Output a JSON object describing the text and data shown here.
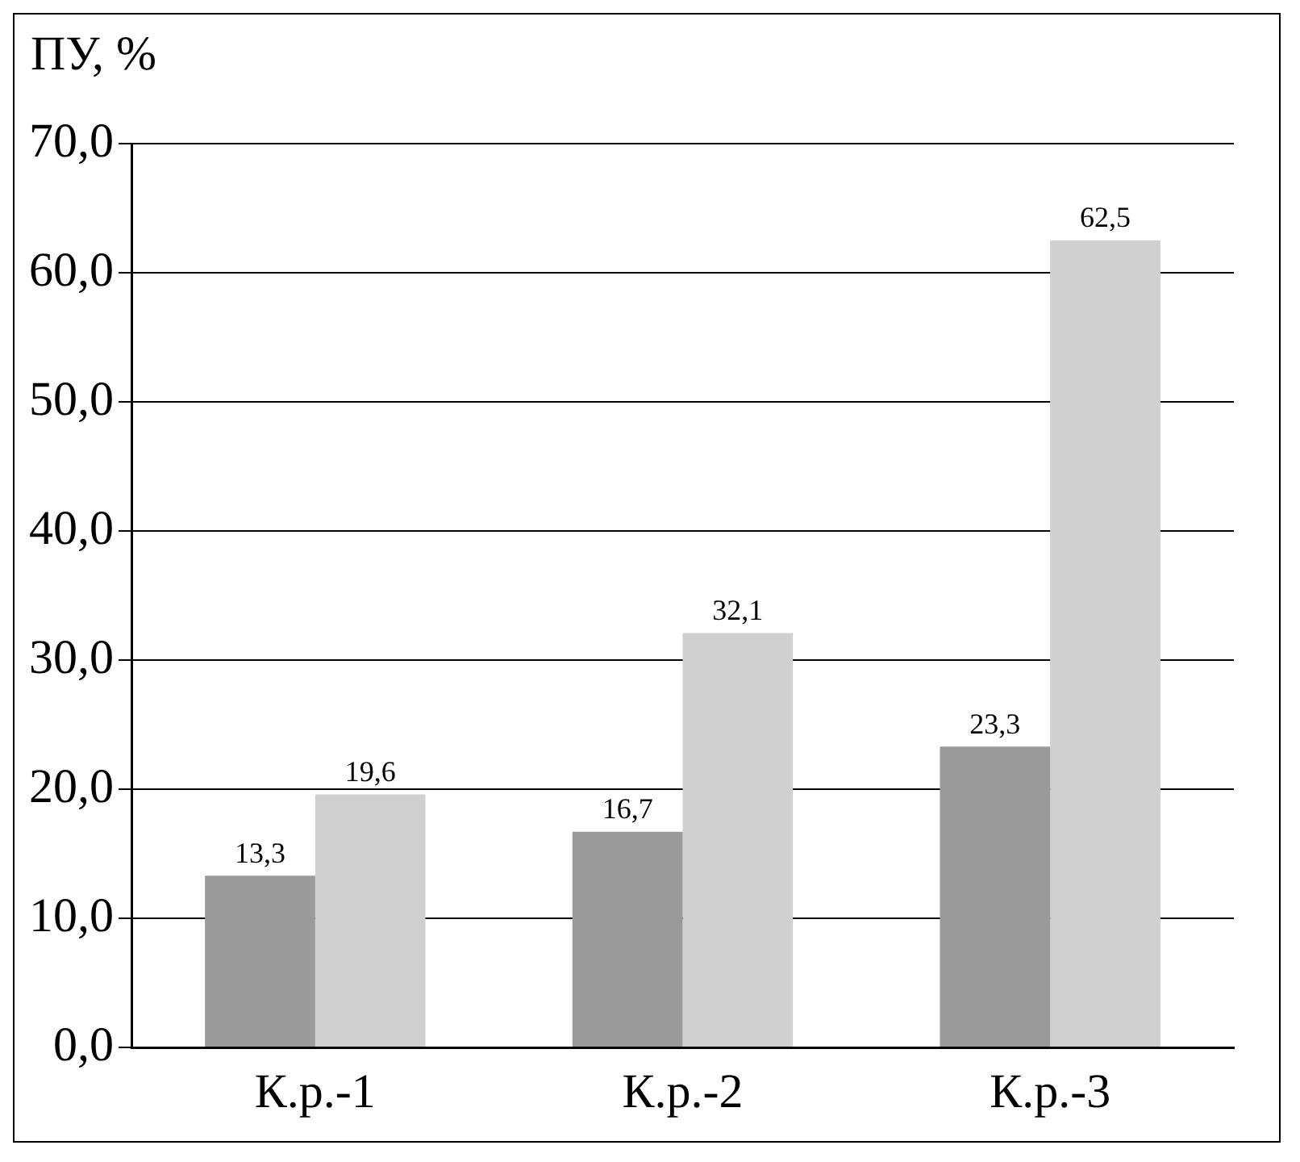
{
  "chart_data": {
    "type": "bar",
    "ylabel": "ПУ, %",
    "categories": [
      "К.р.-1",
      "К.р.-2",
      "К.р.-3"
    ],
    "series": [
      {
        "color": "#9a9a9a",
        "values": [
          13.3,
          16.7,
          23.3
        ],
        "value_labels": [
          "13,3",
          "16,7",
          "23,3"
        ]
      },
      {
        "color": "#d0d0d0",
        "values": [
          19.6,
          32.1,
          62.5
        ],
        "value_labels": [
          "19,6",
          "32,1",
          "62,5"
        ]
      }
    ],
    "ylim": [
      0,
      70
    ],
    "yticks": [
      {
        "value": 0,
        "label": "0,0"
      },
      {
        "value": 10,
        "label": "10,0"
      },
      {
        "value": 20,
        "label": "20,0"
      },
      {
        "value": 30,
        "label": "30,0"
      },
      {
        "value": 40,
        "label": "40,0"
      },
      {
        "value": 50,
        "label": "50,0"
      },
      {
        "value": 60,
        "label": "60,0"
      },
      {
        "value": 70,
        "label": "70,0"
      }
    ],
    "grid": "y",
    "legend": false
  }
}
